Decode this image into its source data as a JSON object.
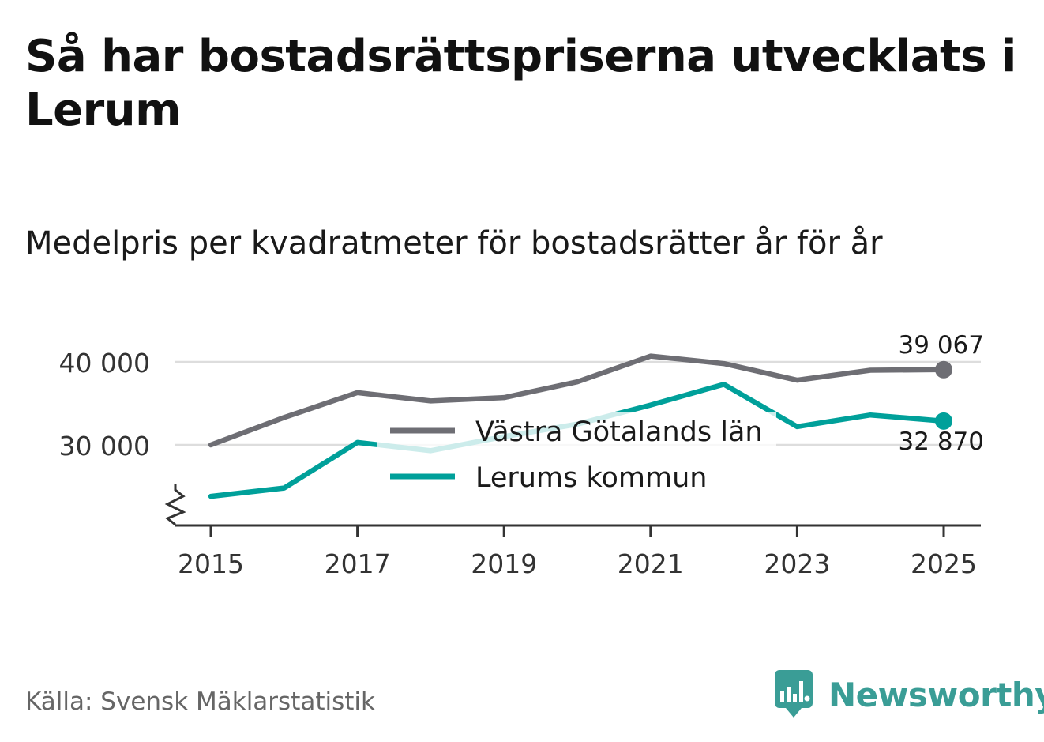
{
  "title": "Så har bostadsrättspriserna utvecklats i Lerum",
  "subtitle": "Medelpris per kvadratmeter för bostadsrätter år för år",
  "source": "Källa: Svensk Mäklarstatistik",
  "logo": {
    "text": "Newsworthy",
    "icon": "newsworthy-logo-icon",
    "color": "#3a9d96"
  },
  "chart_data": {
    "type": "line",
    "title": "Så har bostadsrättspriserna utvecklats i Lerum",
    "subtitle": "Medelpris per kvadratmeter för bostadsrätter år för år",
    "x": [
      2015,
      2016,
      2017,
      2018,
      2019,
      2020,
      2021,
      2022,
      2023,
      2024,
      2025
    ],
    "x_ticks": [
      "2015",
      "2017",
      "2019",
      "2021",
      "2023",
      "2025"
    ],
    "y_ticks": [
      30000,
      40000
    ],
    "y_tick_labels": [
      "30 000",
      "40 000"
    ],
    "ylim": [
      20000,
      42000
    ],
    "axis_break": true,
    "grid": true,
    "legend_position": "center",
    "series": [
      {
        "name": "Västra Götalands län",
        "color": "#6e6e74",
        "values": [
          30000,
          33300,
          36300,
          35300,
          35700,
          37600,
          40700,
          39800,
          37800,
          39000,
          39067
        ],
        "end_label": "39 067"
      },
      {
        "name": "Lerums kommun",
        "color": "#00a09a",
        "values": [
          23800,
          24800,
          30300,
          29300,
          31000,
          32500,
          34800,
          37300,
          32200,
          33600,
          32870
        ],
        "end_label": "32 870"
      }
    ]
  }
}
